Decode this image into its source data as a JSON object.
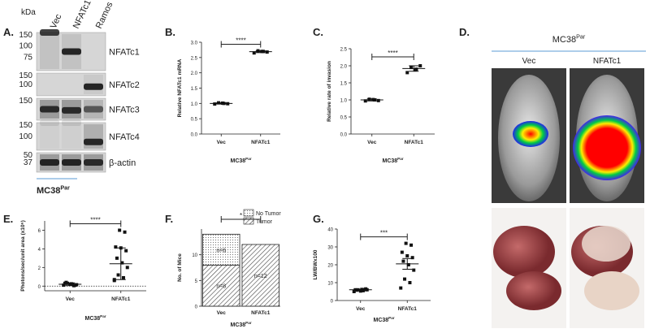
{
  "chart_data": [
    {
      "type": "blot",
      "panel": "A.",
      "unit": "kDa",
      "lanes": [
        "Vec",
        "NFATc1",
        "Ramos"
      ],
      "rows": [
        {
          "name": "NFATc1",
          "markers": [
            150,
            100,
            75
          ]
        },
        {
          "name": "NFATc2",
          "markers": [
            150,
            100
          ]
        },
        {
          "name": "NFATc3",
          "markers": [
            150
          ]
        },
        {
          "name": "NFATc4",
          "markers": [
            150,
            100
          ]
        },
        {
          "name": "β-actin",
          "markers": [
            50,
            37
          ]
        }
      ],
      "group": {
        "base": "MC38",
        "sup": "Par"
      }
    },
    {
      "type": "dot",
      "panel": "B.",
      "ylabel": "Relative NFATc1 mRNA",
      "xlabel": {
        "base": "MC38",
        "sup": "Par"
      },
      "significance": "****",
      "ylim": [
        0,
        3
      ],
      "yticks": [
        {
          "value": 0,
          "label": "0.0"
        },
        {
          "value": 0.5,
          "label": "0.5"
        },
        {
          "value": 1,
          "label": "1.0"
        },
        {
          "value": 1.5,
          "label": "1.5"
        },
        {
          "value": 2,
          "label": "2.0"
        },
        {
          "value": 2.5,
          "label": "2.5"
        },
        {
          "value": 3,
          "label": "3.0"
        }
      ],
      "groups": [
        {
          "name": "Vec",
          "points": [
            0.98,
            1.0,
            1.02,
            0.99,
            1.01
          ],
          "mean": 1.0,
          "error": 0.02
        },
        {
          "name": "NFATc1",
          "points": [
            2.65,
            2.7,
            2.72,
            2.68,
            2.7
          ],
          "mean": 2.69,
          "error": 0.03
        }
      ]
    },
    {
      "type": "dot",
      "panel": "C.",
      "ylabel": "Relative rate of invasion",
      "xlabel": {
        "base": "MC38",
        "sup": "Par"
      },
      "significance": "****",
      "ylim": [
        0,
        2.5
      ],
      "yticks": [
        {
          "value": 0,
          "label": "0.0"
        },
        {
          "value": 0.5,
          "label": "0.5"
        },
        {
          "value": 1,
          "label": "1.0"
        },
        {
          "value": 1.5,
          "label": "1.5"
        },
        {
          "value": 2,
          "label": "2.0"
        },
        {
          "value": 2.5,
          "label": "2.5"
        }
      ],
      "groups": [
        {
          "name": "Vec",
          "points": [
            0.97,
            1.0,
            1.02,
            0.98,
            1.01
          ],
          "mean": 1.0,
          "error": 0.03
        },
        {
          "name": "NFATc1",
          "points": [
            1.8,
            1.9,
            1.95,
            2.0,
            1.88
          ],
          "mean": 1.92,
          "error": 0.08
        }
      ]
    },
    {
      "type": "image",
      "panel": "D.",
      "group": {
        "base": "MC38",
        "sup": "Par"
      },
      "columns": [
        "Vec",
        "NFATc1"
      ]
    },
    {
      "type": "dot",
      "panel": "E.",
      "ylabel": "Photons/sec/unit area (x10⁶)",
      "xlabel": {
        "base": "MC38",
        "sup": "Par"
      },
      "significance": "****",
      "ylim": [
        -0.5,
        7
      ],
      "yticks": [
        0,
        2,
        4,
        6
      ],
      "hline": 0,
      "groups": [
        {
          "name": "Vec",
          "points": [
            0.1,
            0.2,
            0.3,
            0.15,
            0.25,
            0.4,
            0.1,
            0.2,
            0.3,
            0.05
          ],
          "mean": 0.2,
          "error": 0.15
        },
        {
          "name": "NFATc1",
          "points": [
            0.6,
            0.9,
            1.2,
            2.0,
            2.5,
            3.0,
            3.8,
            4.1,
            4.2,
            5.8,
            6.0,
            0.7
          ],
          "mean": 2.4,
          "error": 1.7
        }
      ]
    },
    {
      "type": "stacked",
      "panel": "F.",
      "ylabel": "No. of Mice",
      "xlabel": {
        "base": "MC38",
        "sup": "Par"
      },
      "significance": "*",
      "categories": [
        "Vec",
        "NFATc1"
      ],
      "ylim": [
        0,
        15
      ],
      "yticks": [
        0,
        5,
        10
      ],
      "series": [
        {
          "name": "Tumor",
          "values": [
            8,
            12
          ],
          "value_labels": [
            "n=8",
            "n=12"
          ]
        },
        {
          "name": "No Tumor",
          "values": [
            6,
            null
          ],
          "value_labels": [
            "n=6",
            null
          ]
        }
      ]
    },
    {
      "type": "dot",
      "panel": "G.",
      "ylabel": "LW/BWx100",
      "xlabel": {
        "base": "MC38",
        "sup": "Par"
      },
      "significance": "***",
      "ylim": [
        0,
        40
      ],
      "yticks": [
        0,
        10,
        20,
        30,
        40
      ],
      "groups": [
        {
          "name": "Vec",
          "points": [
            5,
            5.5,
            6,
            6,
            6.2,
            5.8,
            6.5,
            5.3,
            6,
            6.1
          ],
          "mean": 6,
          "error": 0.3
        },
        {
          "name": "NFATc1",
          "points": [
            7,
            10,
            12,
            17,
            20,
            22,
            24,
            25,
            27,
            31,
            32
          ],
          "mean": 20.5,
          "error": 3
        }
      ]
    }
  ]
}
